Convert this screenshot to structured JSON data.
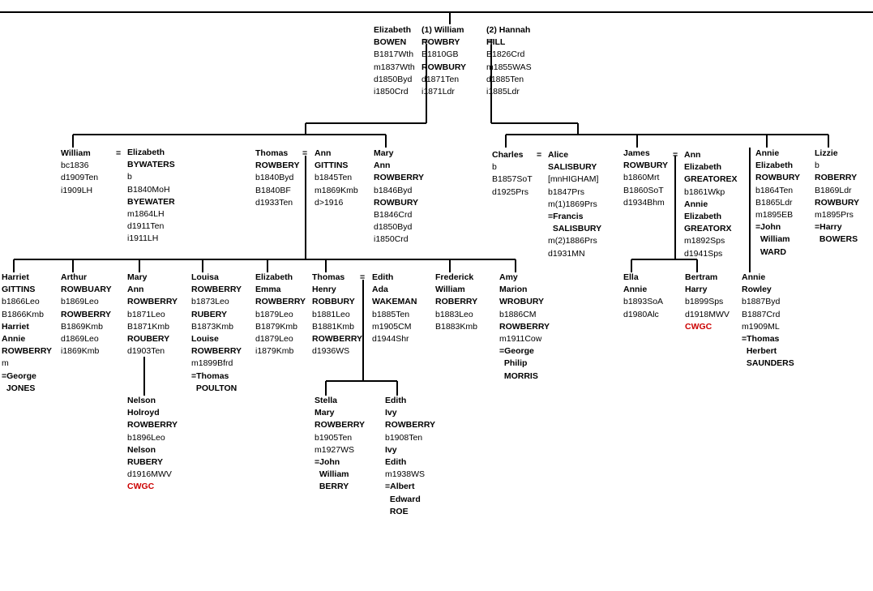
{
  "marriage_symbol": "=",
  "people": {
    "elizabeth_bowen": [
      [
        "Elizabeth",
        1
      ],
      [
        "BOWEN",
        1
      ],
      [
        "B1817Wth",
        0
      ],
      [
        "m1837Wth",
        0
      ],
      [
        "d1850Byd",
        0
      ],
      [
        "i1850Crd",
        0
      ]
    ],
    "william_rowbry": [
      [
        "(1) William",
        1
      ],
      [
        "ROWBRY",
        1
      ],
      [
        "B1810GB",
        0
      ],
      [
        "ROWBURY",
        1
      ],
      [
        "d1871Ten",
        0
      ],
      [
        "i1871Ldr",
        0
      ]
    ],
    "hannah_hill": [
      [
        "(2) Hannah",
        1
      ],
      [
        "HILL",
        1
      ],
      [
        "B1826Crd",
        0
      ],
      [
        "m1855WAS",
        0
      ],
      [
        "d1885Ten",
        0
      ],
      [
        "i1885Ldr",
        0
      ]
    ],
    "william_jr": [
      [
        "William",
        1
      ],
      [
        "bc1836",
        0
      ],
      [
        "d1909Ten",
        0
      ],
      [
        "i1909LH",
        0
      ]
    ],
    "elizabeth_bywaters": [
      [
        "Elizabeth",
        1
      ],
      [
        "BYWATERS",
        1
      ],
      [
        "b",
        0
      ],
      [
        "B1840MoH",
        0
      ],
      [
        "BYEWATER",
        1
      ],
      [
        "m1864LH",
        0
      ],
      [
        "d1911Ten",
        0
      ],
      [
        "i1911LH",
        0
      ]
    ],
    "thomas_rowbery": [
      [
        "Thomas",
        1
      ],
      [
        "ROWBERY",
        1
      ],
      [
        "b1840Byd",
        0
      ],
      [
        "B1840BF",
        0
      ],
      [
        "d1933Ten",
        0
      ]
    ],
    "ann_gittins": [
      [
        "Ann",
        1
      ],
      [
        "GITTINS",
        1
      ],
      [
        "b1845Ten",
        0
      ],
      [
        "m1869Kmb",
        0
      ],
      [
        "d>1916",
        0
      ]
    ],
    "mary_ann": [
      [
        "Mary",
        1
      ],
      [
        "Ann",
        1
      ],
      [
        "ROWBERRY",
        1
      ],
      [
        "b1846Byd",
        0
      ],
      [
        "ROWBURY",
        1
      ],
      [
        "B1846Crd",
        0
      ],
      [
        "d1850Byd",
        0
      ],
      [
        "i1850Crd",
        0
      ]
    ],
    "charles": [
      [
        "Charles",
        1
      ],
      [
        "b",
        0
      ],
      [
        "B1857SoT",
        0
      ],
      [
        "d1925Prs",
        0
      ]
    ],
    "alice_salisbury": [
      [
        "Alice",
        1
      ],
      [
        "SALISBURY",
        1
      ],
      [
        "[mnHIGHAM]",
        0
      ],
      [
        "b1847Prs",
        0
      ],
      [
        "m(1)1869Prs",
        0
      ],
      [
        "=Francis",
        1
      ],
      [
        "  SALISBURY",
        1
      ],
      [
        "m(2)1886Prs",
        0
      ],
      [
        "d1931MN",
        0
      ]
    ],
    "james_rowbury": [
      [
        "James",
        1
      ],
      [
        "ROWBURY",
        1
      ],
      [
        "b1860Mrt",
        0
      ],
      [
        "B1860SoT",
        0
      ],
      [
        "d1934Bhm",
        0
      ]
    ],
    "ann_greatorex": [
      [
        "Ann",
        1
      ],
      [
        "Elizabeth",
        1
      ],
      [
        "GREATOREX",
        1
      ],
      [
        "b1861Wkp",
        0
      ],
      [
        "Annie",
        1
      ],
      [
        "Elizabeth",
        1
      ],
      [
        "GREATORX",
        1
      ],
      [
        "m1892Sps",
        0
      ],
      [
        "d1941Sps",
        0
      ]
    ],
    "annie_elizabeth": [
      [
        "Annie",
        1
      ],
      [
        "Elizabeth",
        1
      ],
      [
        "ROWBURY",
        1
      ],
      [
        "b1864Ten",
        0
      ],
      [
        "B1865Ldr",
        0
      ],
      [
        "m1895EB",
        0
      ],
      [
        "=John",
        1
      ],
      [
        "  William",
        1
      ],
      [
        "  WARD",
        1
      ]
    ],
    "lizzie": [
      [
        "Lizzie",
        1
      ],
      [
        "b",
        0
      ],
      [
        "ROBERRY",
        1
      ],
      [
        "B1869Ldr",
        0
      ],
      [
        "ROWBURY",
        1
      ],
      [
        "m1895Prs",
        0
      ],
      [
        "=Harry",
        1
      ],
      [
        "  BOWERS",
        1
      ]
    ],
    "harriet": [
      [
        "Harriet",
        1
      ],
      [
        "GITTINS",
        1
      ],
      [
        "b1866Leo",
        0
      ],
      [
        "B1866Kmb",
        0
      ],
      [
        "Harriet",
        1
      ],
      [
        "Annie",
        1
      ],
      [
        "ROWBERRY",
        1
      ],
      [
        "m",
        0
      ],
      [
        "=George",
        1
      ],
      [
        "  JONES",
        1
      ]
    ],
    "arthur": [
      [
        "Arthur",
        1
      ],
      [
        "ROWBUARY",
        1
      ],
      [
        "b1869Leo",
        0
      ],
      [
        "ROWBERRY",
        1
      ],
      [
        "B1869Kmb",
        0
      ],
      [
        "d1869Leo",
        0
      ],
      [
        "i1869Kmb",
        0
      ]
    ],
    "mary_ann2": [
      [
        "Mary",
        1
      ],
      [
        "Ann",
        1
      ],
      [
        "ROWBERRY",
        1
      ],
      [
        "b1871Leo",
        0
      ],
      [
        "B1871Kmb",
        0
      ],
      [
        "ROUBERY",
        1
      ],
      [
        "d1903Ten",
        0
      ]
    ],
    "louisa": [
      [
        "Louisa",
        1
      ],
      [
        "ROWBERRY",
        1
      ],
      [
        "b1873Leo",
        0
      ],
      [
        "RUBERY",
        1
      ],
      [
        "B1873Kmb",
        0
      ],
      [
        "Louise",
        1
      ],
      [
        "ROWBERRY",
        1
      ],
      [
        "m1899Bfrd",
        0
      ],
      [
        "=Thomas",
        1
      ],
      [
        "  POULTON",
        1
      ]
    ],
    "elizabeth_emma": [
      [
        "Elizabeth",
        1
      ],
      [
        "Emma",
        1
      ],
      [
        "ROWBERRY",
        1
      ],
      [
        "b1879Leo",
        0
      ],
      [
        "B1879Kmb",
        0
      ],
      [
        "d1879Leo",
        0
      ],
      [
        "i1879Kmb",
        0
      ]
    ],
    "thomas_henry": [
      [
        "Thomas",
        1
      ],
      [
        "Henry",
        1
      ],
      [
        "ROBBURY",
        1
      ],
      [
        "b1881Leo",
        0
      ],
      [
        "B1881Kmb",
        0
      ],
      [
        "ROWBERRY",
        1
      ],
      [
        "d1936WS",
        0
      ]
    ],
    "edith_wakeman": [
      [
        "Edith",
        1
      ],
      [
        "Ada",
        1
      ],
      [
        "WAKEMAN",
        1
      ],
      [
        "b1885Ten",
        0
      ],
      [
        "m1905CM",
        0
      ],
      [
        "d1944Shr",
        0
      ]
    ],
    "frederick": [
      [
        "Frederick",
        1
      ],
      [
        "William",
        1
      ],
      [
        "ROBERRY",
        1
      ],
      [
        "b1883Leo",
        0
      ],
      [
        "B1883Kmb",
        0
      ]
    ],
    "amy": [
      [
        "Amy",
        1
      ],
      [
        "Marion",
        1
      ],
      [
        "WROBURY",
        1
      ],
      [
        "b1886CM",
        0
      ],
      [
        "ROWBERRY",
        1
      ],
      [
        "m1911Cow",
        0
      ],
      [
        "=George",
        1
      ],
      [
        "  Philip",
        1
      ],
      [
        "  MORRIS",
        1
      ]
    ],
    "ella": [
      [
        "Ella",
        1
      ],
      [
        "Annie",
        1
      ],
      [
        "b1893SoA",
        0
      ],
      [
        "d1980Alc",
        0
      ]
    ],
    "bertram": [
      [
        "Bertram",
        1
      ],
      [
        "Harry",
        1
      ],
      [
        "b1899Sps",
        0
      ],
      [
        "d1918MWV",
        0
      ],
      [
        "CWGC",
        2
      ]
    ],
    "annie_rowley": [
      [
        "Annie",
        1
      ],
      [
        "Rowley",
        1
      ],
      [
        "b1887Byd",
        0
      ],
      [
        "B1887Crd",
        0
      ],
      [
        "m1909ML",
        0
      ],
      [
        "=Thomas",
        1
      ],
      [
        "  Herbert",
        1
      ],
      [
        "  SAUNDERS",
        1
      ]
    ],
    "nelson": [
      [
        "Nelson",
        1
      ],
      [
        "Holroyd",
        1
      ],
      [
        "ROWBERRY",
        1
      ],
      [
        "b1896Leo",
        0
      ],
      [
        "Nelson",
        1
      ],
      [
        "RUBERY",
        1
      ],
      [
        "d1916MWV",
        0
      ],
      [
        "CWGC",
        2
      ]
    ],
    "stella": [
      [
        "Stella",
        1
      ],
      [
        "Mary",
        1
      ],
      [
        "ROWBERRY",
        1
      ],
      [
        "b1905Ten",
        0
      ],
      [
        "m1927WS",
        0
      ],
      [
        "=John",
        1
      ],
      [
        "  William",
        1
      ],
      [
        "  BERRY",
        1
      ]
    ],
    "edith_ivy": [
      [
        "Edith",
        1
      ],
      [
        "Ivy",
        1
      ],
      [
        "ROWBERRY",
        1
      ],
      [
        "b1908Ten",
        0
      ],
      [
        "Ivy",
        1
      ],
      [
        "Edith",
        1
      ],
      [
        "m1938WS",
        0
      ],
      [
        "=Albert",
        1
      ],
      [
        "  Edward",
        1
      ],
      [
        "  ROE",
        1
      ]
    ]
  }
}
